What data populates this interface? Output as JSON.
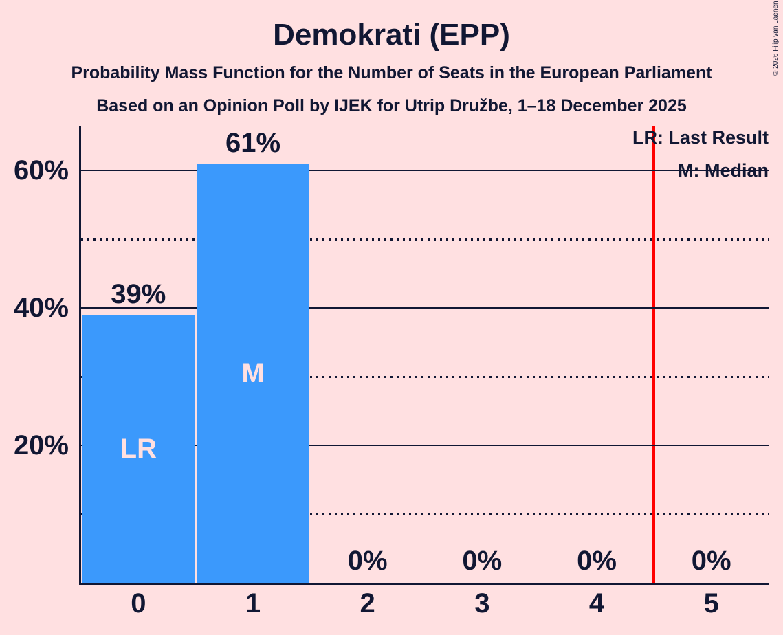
{
  "title": "Demokrati (EPP)",
  "subtitle1": "Probability Mass Function for the Number of Seats in the European Parliament",
  "subtitle2": "Based on an Opinion Poll by IJEK for Utrip Družbe, 1–18 December 2025",
  "copyright": "© 2026 Filip van Laenen",
  "legend": {
    "lr": "LR: Last Result",
    "m": "M: Median"
  },
  "colors": {
    "background": "#ffe0e1",
    "text": "#111733",
    "bar": "#3b99fc",
    "bar_label": "#ffe0e1",
    "reference_line": "#ff0000"
  },
  "chart_data": {
    "type": "bar",
    "title": "Demokrati (EPP)",
    "categories": [
      "0",
      "1",
      "2",
      "3",
      "4",
      "5"
    ],
    "values": [
      39,
      61,
      0,
      0,
      0,
      0
    ],
    "value_labels": [
      "39%",
      "61%",
      "0%",
      "0%",
      "0%",
      "0%"
    ],
    "bar_annotations": [
      "LR",
      "M",
      "",
      "",
      "",
      ""
    ],
    "xlabel": "",
    "ylabel": "",
    "y_ticks": [
      {
        "label": "20%",
        "value": 20
      },
      {
        "label": "40%",
        "value": 40
      },
      {
        "label": "60%",
        "value": 60
      }
    ],
    "solid_gridlines_pct": [
      20,
      40,
      60
    ],
    "dotted_gridlines_pct": [
      10,
      30,
      50
    ],
    "ylim": [
      0,
      66.5
    ],
    "grid": "horizontal",
    "reference_line_x": 4.5,
    "legend_position": "top-right",
    "legend_entries": [
      "LR: Last Result",
      "M: Median"
    ]
  }
}
